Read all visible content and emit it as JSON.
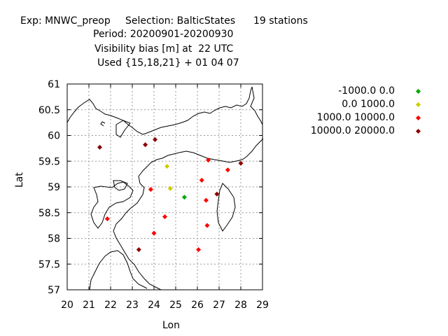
{
  "title": {
    "line1_exp": "Exp: MNWC_preop",
    "line1_sel": "Selection: BalticStates",
    "line1_count": "19 stations",
    "line2": "Period: 20200901-20200930",
    "line3": "Visibility bias [m] at  22 UTC",
    "line4": "Used {15,18,21} + 01 04 07"
  },
  "chart_data": {
    "type": "scatter",
    "xlabel": "Lon",
    "ylabel": "Lat",
    "xlim": [
      20,
      29
    ],
    "ylim": [
      57,
      61
    ],
    "xticks": [
      "20",
      "21",
      "22",
      "23",
      "24",
      "25",
      "26",
      "27",
      "28",
      "29"
    ],
    "yticks": [
      "57",
      "57.5",
      "58",
      "58.5",
      "59",
      "59.5",
      "60",
      "60.5",
      "61"
    ],
    "grid": true,
    "legend_position": "top-right, outside plot",
    "series": [
      {
        "name": "-1000.0 0.0",
        "color": "#00aa00",
        "points": [
          [
            25.4,
            58.8
          ]
        ]
      },
      {
        "name": "0.0 1000.0",
        "color": "#cccc00",
        "points": [
          [
            24.6,
            59.4
          ],
          [
            24.75,
            58.97
          ]
        ]
      },
      {
        "name": "1000.0 10000.0",
        "color": "#ff0000",
        "points": [
          [
            26.5,
            59.52
          ],
          [
            27.4,
            59.33
          ],
          [
            26.2,
            59.13
          ],
          [
            23.85,
            58.95
          ],
          [
            26.4,
            58.74
          ],
          [
            24.5,
            58.42
          ],
          [
            21.85,
            58.38
          ],
          [
            26.45,
            58.25
          ],
          [
            24.0,
            58.1
          ],
          [
            26.05,
            57.78
          ]
        ]
      },
      {
        "name": "10000.0 20000.0",
        "color": "#8b0000",
        "points": [
          [
            21.5,
            59.77
          ],
          [
            23.6,
            59.82
          ],
          [
            24.05,
            59.92
          ],
          [
            28.0,
            59.46
          ],
          [
            26.9,
            58.86
          ],
          [
            23.3,
            57.78
          ]
        ]
      }
    ]
  }
}
